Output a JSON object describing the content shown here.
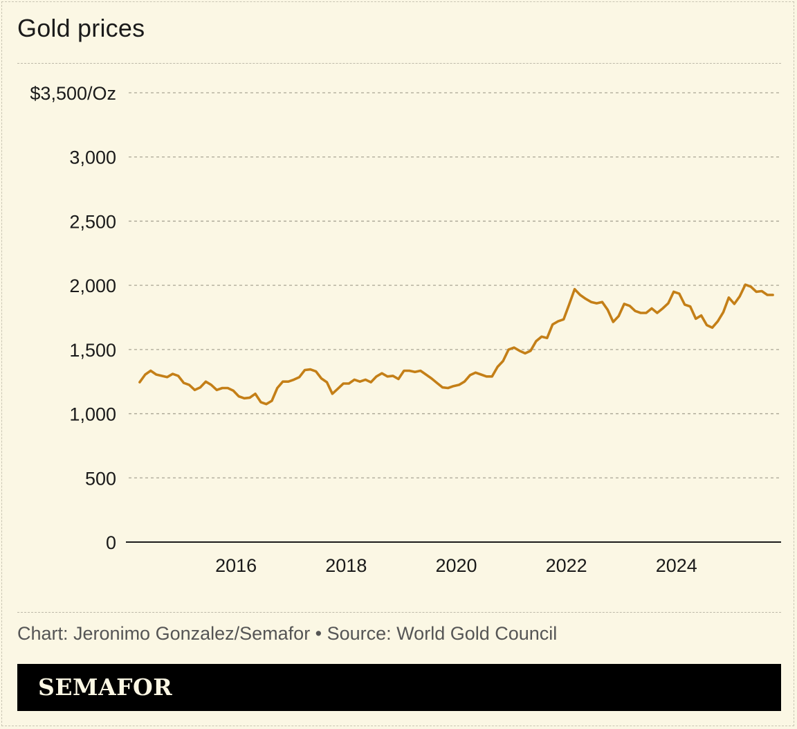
{
  "title": "Gold prices",
  "footer": {
    "source": "Chart: Jeronimo Gonzalez/Semafor • Source: World Gold Council",
    "brand": "SEMAFOR"
  },
  "colors": {
    "background": "#fbf7e4",
    "line": "#c47f17",
    "brand_bar": "#000000"
  },
  "chart_data": {
    "type": "line",
    "title": "Gold prices",
    "xlabel": "",
    "ylabel": "",
    "unit": "$/Oz",
    "ylim": [
      0,
      3500
    ],
    "xlim": [
      2014.0,
      2025.9
    ],
    "grid": true,
    "y_ticks": [
      {
        "value": 3500,
        "label": "$3,500/Oz"
      },
      {
        "value": 3000,
        "label": "3,000"
      },
      {
        "value": 2500,
        "label": "2,500"
      },
      {
        "value": 2000,
        "label": "2,000"
      },
      {
        "value": 1500,
        "label": "1,500"
      },
      {
        "value": 1000,
        "label": "1,000"
      },
      {
        "value": 500,
        "label": "500"
      },
      {
        "value": 0,
        "label": "0"
      }
    ],
    "x_ticks": [
      {
        "value": 2016,
        "label": "2016"
      },
      {
        "value": 2018,
        "label": "2018"
      },
      {
        "value": 2020,
        "label": "2020"
      },
      {
        "value": 2022,
        "label": "2022"
      },
      {
        "value": 2024,
        "label": "2024"
      }
    ],
    "series": [
      {
        "values": [
          [
            2014.25,
            1245
          ],
          [
            2014.35,
            1305
          ],
          [
            2014.45,
            1335
          ],
          [
            2014.55,
            1305
          ],
          [
            2014.65,
            1295
          ],
          [
            2014.75,
            1285
          ],
          [
            2014.85,
            1310
          ],
          [
            2014.95,
            1295
          ],
          [
            2015.05,
            1240
          ],
          [
            2015.15,
            1225
          ],
          [
            2015.25,
            1185
          ],
          [
            2015.35,
            1205
          ],
          [
            2015.45,
            1250
          ],
          [
            2015.55,
            1225
          ],
          [
            2015.65,
            1185
          ],
          [
            2015.75,
            1200
          ],
          [
            2015.85,
            1200
          ],
          [
            2015.95,
            1180
          ],
          [
            2016.05,
            1135
          ],
          [
            2016.15,
            1120
          ],
          [
            2016.25,
            1125
          ],
          [
            2016.35,
            1155
          ],
          [
            2016.45,
            1090
          ],
          [
            2016.55,
            1075
          ],
          [
            2016.65,
            1100
          ],
          [
            2016.75,
            1200
          ],
          [
            2016.85,
            1250
          ],
          [
            2016.95,
            1250
          ],
          [
            2017.05,
            1265
          ],
          [
            2017.15,
            1285
          ],
          [
            2017.25,
            1340
          ],
          [
            2017.35,
            1345
          ],
          [
            2017.45,
            1330
          ],
          [
            2017.55,
            1275
          ],
          [
            2017.65,
            1245
          ],
          [
            2017.75,
            1155
          ],
          [
            2017.85,
            1195
          ],
          [
            2017.95,
            1235
          ],
          [
            2018.05,
            1235
          ],
          [
            2018.15,
            1265
          ],
          [
            2018.25,
            1250
          ],
          [
            2018.35,
            1265
          ],
          [
            2018.45,
            1245
          ],
          [
            2018.55,
            1290
          ],
          [
            2018.65,
            1315
          ],
          [
            2018.75,
            1290
          ],
          [
            2018.85,
            1295
          ],
          [
            2018.95,
            1270
          ],
          [
            2019.05,
            1335
          ],
          [
            2019.15,
            1335
          ],
          [
            2019.25,
            1325
          ],
          [
            2019.35,
            1335
          ],
          [
            2019.45,
            1305
          ],
          [
            2019.55,
            1275
          ],
          [
            2019.65,
            1240
          ],
          [
            2019.75,
            1205
          ],
          [
            2019.85,
            1200
          ],
          [
            2019.95,
            1215
          ],
          [
            2020.05,
            1225
          ],
          [
            2020.15,
            1250
          ],
          [
            2020.25,
            1300
          ],
          [
            2020.35,
            1320
          ],
          [
            2020.45,
            1305
          ],
          [
            2020.55,
            1290
          ],
          [
            2020.65,
            1290
          ],
          [
            2020.75,
            1365
          ],
          [
            2020.85,
            1410
          ],
          [
            2020.95,
            1500
          ],
          [
            2021.05,
            1515
          ],
          [
            2021.15,
            1490
          ],
          [
            2021.25,
            1470
          ],
          [
            2021.35,
            1490
          ],
          [
            2021.45,
            1565
          ],
          [
            2021.55,
            1600
          ],
          [
            2021.65,
            1590
          ],
          [
            2021.75,
            1695
          ],
          [
            2021.85,
            1720
          ],
          [
            2021.95,
            1735
          ],
          [
            2022.05,
            1850
          ],
          [
            2022.15,
            1970
          ],
          [
            2022.25,
            1925
          ],
          [
            2022.35,
            1895
          ],
          [
            2022.45,
            1870
          ],
          [
            2022.55,
            1860
          ],
          [
            2022.65,
            1870
          ],
          [
            2022.75,
            1810
          ],
          [
            2022.85,
            1715
          ],
          [
            2022.95,
            1760
          ],
          [
            2023.05,
            1855
          ],
          [
            2023.15,
            1840
          ],
          [
            2023.25,
            1800
          ],
          [
            2023.35,
            1785
          ],
          [
            2023.45,
            1785
          ],
          [
            2023.55,
            1820
          ],
          [
            2023.65,
            1785
          ],
          [
            2023.75,
            1820
          ],
          [
            2023.85,
            1860
          ],
          [
            2023.95,
            1950
          ],
          [
            2024.05,
            1935
          ],
          [
            2024.15,
            1850
          ],
          [
            2024.25,
            1835
          ],
          [
            2024.35,
            1740
          ],
          [
            2024.45,
            1765
          ],
          [
            2024.55,
            1690
          ],
          [
            2024.65,
            1670
          ],
          [
            2024.75,
            1720
          ],
          [
            2024.85,
            1790
          ],
          [
            2024.95,
            1905
          ],
          [
            2025.05,
            1855
          ],
          [
            2025.15,
            1915
          ],
          [
            2025.25,
            2005
          ],
          [
            2025.35,
            1990
          ],
          [
            2025.45,
            1950
          ],
          [
            2025.55,
            1955
          ],
          [
            2025.65,
            1925
          ],
          [
            2025.75,
            1925
          ]
        ]
      }
    ]
  }
}
